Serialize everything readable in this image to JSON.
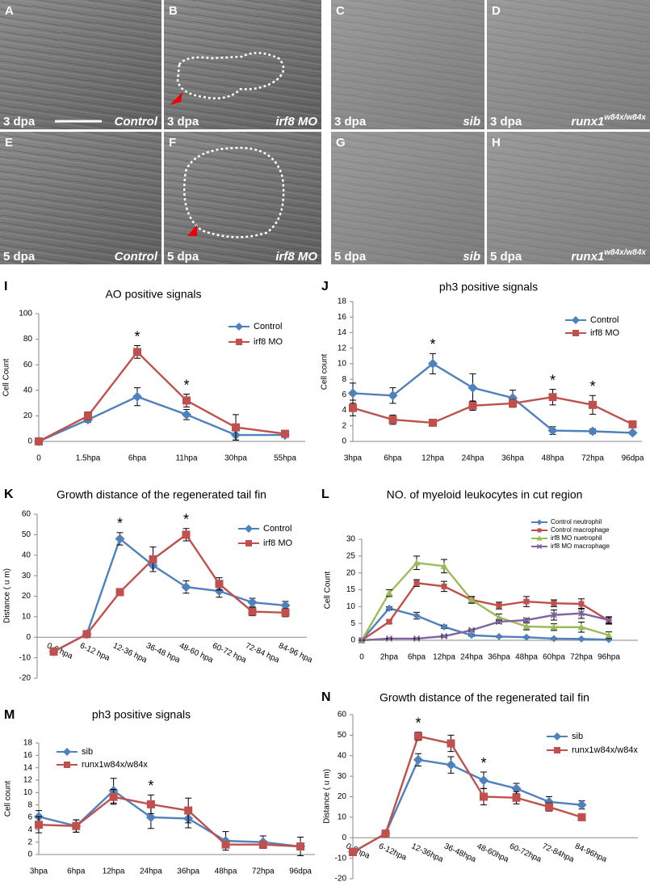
{
  "panels": [
    {
      "letter": "A",
      "time": "3 dpa",
      "label": "Control"
    },
    {
      "letter": "B",
      "time": "3 dpa",
      "label": "irf8 MO"
    },
    {
      "letter": "C",
      "time": "3 dpa",
      "label": "sib"
    },
    {
      "letter": "D",
      "time": "3 dpa",
      "label": "runx1",
      "sup": "w84x/w84x"
    },
    {
      "letter": "E",
      "time": "5 dpa",
      "label": "Control"
    },
    {
      "letter": "F",
      "time": "5 dpa",
      "label": "irf8 MO"
    },
    {
      "letter": "G",
      "time": "5 dpa",
      "label": "sib"
    },
    {
      "letter": "H",
      "time": "5 dpa",
      "label": "runx1",
      "sup": "w84x/w84x"
    }
  ],
  "chart_data": [
    {
      "type": "line",
      "label": "I",
      "title": "AO positive signals",
      "ylabel": "Cell Count",
      "categories": [
        "0",
        "1.5hpa",
        "6hpa",
        "11hpa",
        "30hpa",
        "55hpa"
      ],
      "ylim": [
        0,
        100
      ],
      "yticks": [
        0,
        20,
        40,
        60,
        80,
        100
      ],
      "legend": "upper right",
      "series": [
        {
          "name": "Control",
          "color": "#4f81bd",
          "marker": "diamond",
          "values": [
            0,
            17,
            35,
            21,
            5,
            5
          ],
          "errors": [
            0,
            2,
            7,
            4,
            4,
            1
          ]
        },
        {
          "name": "irf8 MO",
          "color": "#c0504d",
          "marker": "square",
          "values": [
            0,
            20,
            70,
            32,
            11,
            6
          ],
          "errors": [
            0,
            3,
            5,
            5,
            10,
            1
          ]
        }
      ],
      "annotations": [
        {
          "text": "*",
          "x": "6hpa"
        },
        {
          "text": "*",
          "x": "11hpa"
        }
      ]
    },
    {
      "type": "line",
      "label": "J",
      "title": "ph3 positive signals",
      "ylabel": "Cell count",
      "categories": [
        "3hpa",
        "6hpa",
        "12hpa",
        "24hpa",
        "36hpa",
        "48hpa",
        "72hpa",
        "96dpa"
      ],
      "ylim": [
        0,
        18
      ],
      "yticks": [
        0,
        2,
        4,
        6,
        8,
        10,
        12,
        14,
        16,
        18
      ],
      "legend": "upper right",
      "series": [
        {
          "name": "Control",
          "color": "#4f81bd",
          "marker": "diamond",
          "values": [
            6.2,
            5.9,
            10,
            6.9,
            5.6,
            1.4,
            1.3,
            1.1
          ],
          "errors": [
            1.3,
            1,
            1.3,
            1.8,
            1,
            0.5,
            0.3,
            0.2
          ]
        },
        {
          "name": "irf8 MO",
          "color": "#c0504d",
          "marker": "square",
          "values": [
            4.3,
            2.8,
            2.4,
            4.6,
            4.9,
            5.7,
            4.7,
            2.2
          ],
          "errors": [
            1,
            0.6,
            0.3,
            0.6,
            0.5,
            1,
            1.2,
            0.3
          ]
        }
      ],
      "annotations": [
        {
          "text": "*",
          "x": "12hpa"
        },
        {
          "text": "*",
          "x": "48hpa"
        },
        {
          "text": "*",
          "x": "72hpa"
        }
      ]
    },
    {
      "type": "line",
      "label": "K",
      "title": "Growth distance of the regenerated tail fin",
      "ylabel": "Distance ( u m)",
      "categories": [
        "0-6 hpa",
        "6-12 hpa",
        "12-36 hpa",
        "36-48 hpa",
        "48-60 hpa",
        "60-72 hpa",
        "72-84 hpa",
        "84-96 hpa"
      ],
      "ylim": [
        -20,
        60
      ],
      "yticks": [
        -20,
        -10,
        0,
        10,
        20,
        30,
        40,
        50,
        60
      ],
      "legend": "upper right",
      "series": [
        {
          "name": "Control",
          "color": "#4f81bd",
          "marker": "diamond",
          "values": [
            -7,
            1.5,
            48,
            35,
            24.5,
            22.5,
            17,
            15.5
          ],
          "errors": [
            0,
            0,
            3,
            3,
            3,
            3,
            2,
            2
          ]
        },
        {
          "name": "irf8 MO",
          "color": "#c0504d",
          "marker": "square",
          "values": [
            -7,
            1.5,
            22,
            38,
            50,
            26,
            12.5,
            12
          ],
          "errors": [
            0,
            0,
            0,
            6,
            3,
            3,
            2,
            2
          ]
        }
      ],
      "annotations": [
        {
          "text": "*",
          "x": "12-36 hpa"
        },
        {
          "text": "*",
          "x": "48-60 hpa"
        }
      ]
    },
    {
      "type": "line",
      "label": "L",
      "title": "NO. of myeloid leukocytes in cut region",
      "ylabel": "Cell Count",
      "categories": [
        "0",
        "2hpa",
        "6hpa",
        "12hpa",
        "24hpa",
        "36hpa",
        "48hpa",
        "60hpa",
        "72hpa",
        "96hpa"
      ],
      "ylim": [
        0,
        30
      ],
      "yticks": [
        0,
        5,
        10,
        15,
        20,
        25,
        30
      ],
      "legend": "upper right",
      "series": [
        {
          "name": "Control neutrophil",
          "color": "#4f81bd",
          "marker": "diamond",
          "values": [
            0,
            9.5,
            7.3,
            4,
            1.5,
            1.1,
            0.9,
            0.5,
            0.4,
            0.2
          ],
          "errors": [
            0,
            0.5,
            1,
            0.5,
            0.3,
            0.2,
            0.2,
            0.2,
            0.1,
            0.1
          ]
        },
        {
          "name": "Control macrophage",
          "color": "#c0504d",
          "marker": "square",
          "values": [
            0,
            5.5,
            17,
            16,
            12,
            10.3,
            11.5,
            11,
            10.8,
            5.8
          ],
          "errors": [
            0,
            0.5,
            1,
            1.5,
            1,
            1,
            1.5,
            1,
            1.5,
            1
          ]
        },
        {
          "name": "irf8 MO nuetrophil",
          "color": "#9bbb59",
          "marker": "triangle",
          "values": [
            0,
            14,
            23,
            22,
            12,
            6.8,
            4.1,
            3.9,
            3.9,
            1.5
          ],
          "errors": [
            0,
            1,
            2,
            2,
            1,
            1,
            1,
            1,
            1.5,
            1
          ]
        },
        {
          "name": "irf8 MO macrophage",
          "color": "#8064a2",
          "marker": "x",
          "values": [
            0,
            0.5,
            0.5,
            1.2,
            3,
            5.5,
            6,
            7.5,
            8,
            6
          ],
          "errors": [
            0,
            0.2,
            0.2,
            0.3,
            0.3,
            0.5,
            0.5,
            1.5,
            1.5,
            1
          ]
        }
      ],
      "annotations": []
    },
    {
      "type": "line",
      "label": "M",
      "title": "ph3 positive signals",
      "ylabel": "Cell count",
      "categories": [
        "3hpa",
        "6hpa",
        "12hpa",
        "24hpa",
        "36hpa",
        "48hpa",
        "72hpa",
        "96dpa"
      ],
      "ylim": [
        0,
        18
      ],
      "yticks": [
        0,
        2,
        4,
        6,
        8,
        10,
        12,
        14,
        16,
        18
      ],
      "legend": "upper right",
      "series": [
        {
          "name": "sib",
          "color": "#4f81bd",
          "marker": "diamond",
          "values": [
            6.1,
            4.6,
            10.3,
            6,
            5.8,
            2.2,
            2,
            1.3
          ],
          "errors": [
            1,
            1,
            2,
            1.8,
            1.5,
            1.5,
            1,
            1.5
          ]
        },
        {
          "name": "runx1w84x/w84x",
          "color": "#c0504d",
          "marker": "square",
          "values": [
            4.8,
            4.6,
            9.3,
            8.1,
            7.1,
            1.6,
            1.6,
            1.3
          ],
          "errors": [
            1.3,
            1,
            1.2,
            1.5,
            2,
            0.5,
            0.5,
            0.5
          ]
        }
      ],
      "annotations": [
        {
          "text": "*",
          "x": "24hpa"
        }
      ]
    },
    {
      "type": "line",
      "label": "N",
      "title": "Growth distance of the regenerated tail fin",
      "ylabel": "Distance ( u m)",
      "categories": [
        "0-6hpa",
        "6-12hpa",
        "12-36hpa",
        "36-48hpa",
        "48-60hpa",
        "60-72hpa",
        "72-84hpa",
        "84-96hpa"
      ],
      "ylim": [
        -20,
        60
      ],
      "yticks": [
        -20,
        -10,
        0,
        10,
        20,
        30,
        40,
        50,
        60
      ],
      "legend": "upper right",
      "series": [
        {
          "name": "sib",
          "color": "#4f81bd",
          "marker": "diamond",
          "values": [
            -7,
            2,
            38,
            35.5,
            28,
            24,
            17.5,
            16
          ],
          "errors": [
            0,
            0,
            3,
            4,
            4,
            2.5,
            2.5,
            2
          ]
        },
        {
          "name": "runx1w84x/w84x",
          "color": "#c0504d",
          "marker": "square",
          "values": [
            -7,
            2,
            49.5,
            46,
            20,
            19.5,
            15,
            10
          ],
          "errors": [
            0,
            0,
            2,
            4,
            4,
            3,
            2,
            1.5
          ]
        }
      ],
      "annotations": [
        {
          "text": "*",
          "x": "12-36hpa"
        },
        {
          "text": "*",
          "x": "48-60hpa"
        }
      ]
    }
  ]
}
